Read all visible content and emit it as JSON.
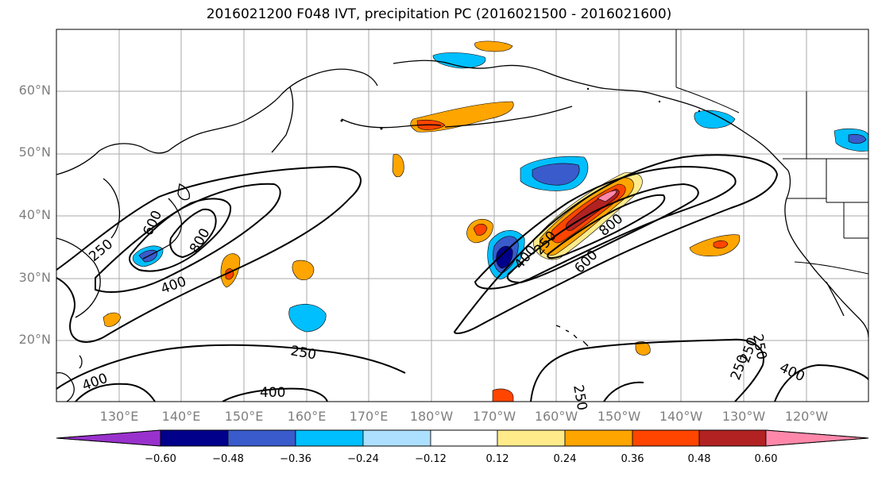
{
  "title": "2016021200 F048 IVT, precipitation PC (2016021500 - 2016021600)",
  "lat_labels": [
    "60°N",
    "50°N",
    "40°N",
    "30°N",
    "20°N"
  ],
  "lon_labels": [
    "130°E",
    "140°E",
    "150°E",
    "160°E",
    "170°E",
    "180°W",
    "170°W",
    "160°W",
    "150°W",
    "140°W",
    "130°W",
    "120°W"
  ],
  "contour_labels": [
    "250",
    "400",
    "600",
    "800",
    "250",
    "400",
    "600",
    "800",
    "250",
    "400",
    "250",
    "250",
    "400",
    "250",
    "400",
    "250"
  ],
  "colorbar": {
    "ticks": [
      "−0.60",
      "−0.48",
      "−0.36",
      "−0.24",
      "−0.12",
      "0.12",
      "0.24",
      "0.36",
      "0.48",
      "0.60"
    ],
    "colors": [
      "#9932CC",
      "#00008B",
      "#3A5BCB",
      "#00BFFF",
      "#ADDFFF",
      "#FFFFFF",
      "#FFEB8A",
      "#FFA500",
      "#FF4500",
      "#B22222",
      "#FF88AA",
      "#FF88AA"
    ]
  }
}
